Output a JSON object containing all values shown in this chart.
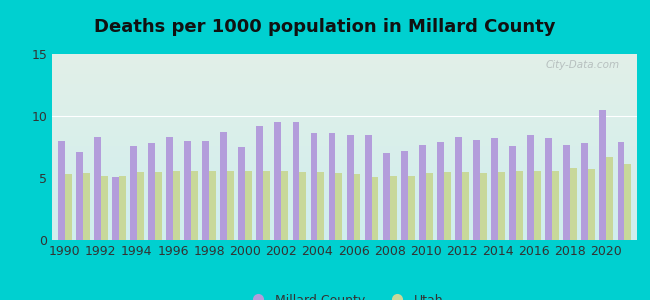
{
  "title": "Deaths per 1000 population in Millard County",
  "years": [
    1990,
    1991,
    1992,
    1993,
    1994,
    1995,
    1996,
    1997,
    1998,
    1999,
    2000,
    2001,
    2002,
    2003,
    2004,
    2005,
    2006,
    2007,
    2008,
    2009,
    2010,
    2011,
    2012,
    2013,
    2014,
    2015,
    2016,
    2017,
    2018,
    2019,
    2020,
    2021
  ],
  "millard": [
    8.0,
    7.1,
    8.3,
    5.1,
    7.6,
    7.8,
    8.3,
    8.0,
    8.0,
    8.7,
    7.5,
    9.2,
    9.5,
    9.5,
    8.6,
    8.6,
    8.5,
    8.5,
    7.0,
    7.2,
    7.7,
    7.9,
    8.3,
    8.1,
    8.2,
    7.6,
    8.5,
    8.2,
    7.7,
    7.8,
    10.5,
    7.9
  ],
  "utah": [
    5.3,
    5.4,
    5.2,
    5.2,
    5.5,
    5.5,
    5.6,
    5.6,
    5.6,
    5.6,
    5.6,
    5.6,
    5.6,
    5.5,
    5.5,
    5.4,
    5.3,
    5.1,
    5.2,
    5.2,
    5.4,
    5.5,
    5.5,
    5.4,
    5.5,
    5.6,
    5.6,
    5.6,
    5.8,
    5.7,
    6.7,
    6.1
  ],
  "millard_color": "#b39ddb",
  "utah_color": "#c8d89a",
  "background_outer": "#00d0d0",
  "background_plot_top": "#e2f0e8",
  "background_plot_bottom": "#d8f0f0",
  "ylim": [
    0,
    15
  ],
  "yticks": [
    0,
    5,
    10,
    15
  ],
  "title_fontsize": 13,
  "bar_width": 0.38
}
